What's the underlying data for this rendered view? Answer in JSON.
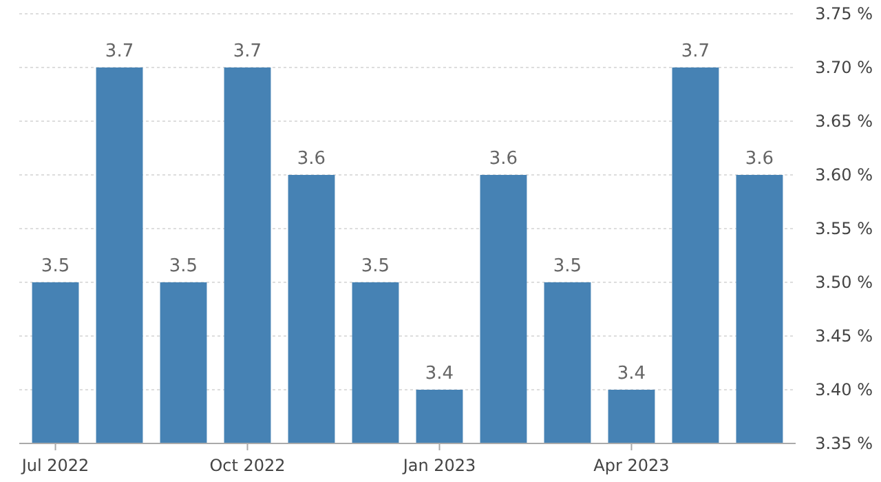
{
  "chart_data": {
    "type": "bar",
    "categories": [
      "Jul 2022",
      null,
      null,
      "Oct 2022",
      null,
      null,
      "Jan 2023",
      null,
      null,
      "Apr 2023",
      null,
      null
    ],
    "values": [
      3.5,
      3.7,
      3.5,
      3.7,
      3.6,
      3.5,
      3.4,
      3.6,
      3.5,
      3.4,
      3.7,
      3.6
    ],
    "color": "#4682b4",
    "ylim": [
      3.35,
      3.75
    ],
    "yticks": [
      {
        "value": 3.35,
        "label": "3.35 %"
      },
      {
        "value": 3.4,
        "label": "3.40 %"
      },
      {
        "value": 3.45,
        "label": "3.45 %"
      },
      {
        "value": 3.5,
        "label": "3.50 %"
      },
      {
        "value": 3.55,
        "label": "3.55 %"
      },
      {
        "value": 3.6,
        "label": "3.60 %"
      },
      {
        "value": 3.65,
        "label": "3.65 %"
      },
      {
        "value": 3.7,
        "label": "3.70 %"
      },
      {
        "value": 3.75,
        "label": "3.75 %"
      }
    ],
    "grid": "y",
    "data_labels": true
  }
}
